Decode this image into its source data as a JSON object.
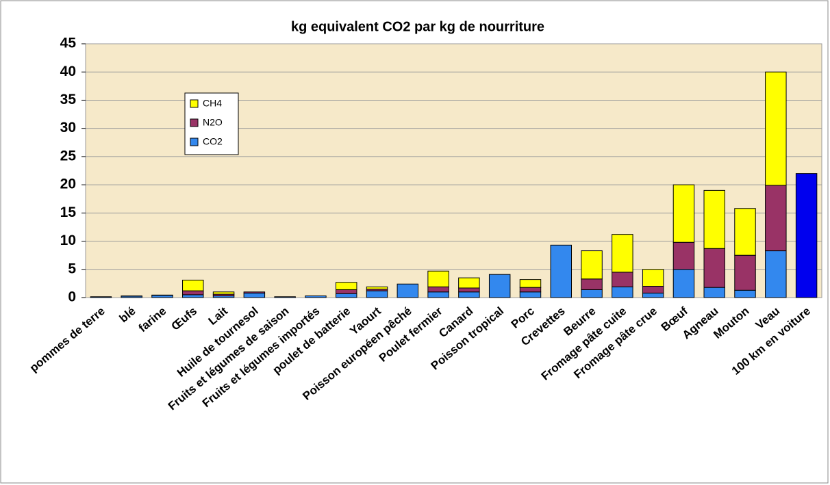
{
  "chart_data": {
    "type": "stacked_bar",
    "title": "kg equivalent CO2 par kg de nourriture",
    "categories": [
      "pommes de terre",
      "blé",
      "farine",
      "Œufs",
      "Lait",
      "Huile de tournesol",
      "Fruits et légumes de saison",
      "Fruits et légumes importés",
      "poulet de batterie",
      "Yaourt",
      "Poisson européen pêché",
      "Poulet fermier",
      "Canard",
      "Poisson tropical",
      "Porc",
      "Crevettes",
      "Beurre",
      "Fromage pâte cuite",
      "Fromage pâte crue",
      "Bœuf",
      "Agneau",
      "Mouton",
      "Veau",
      "100 km en voiture"
    ],
    "series": [
      {
        "name": "CO2",
        "color": "#3388ee",
        "values": [
          0.15,
          0.25,
          0.4,
          0.5,
          0.3,
          0.8,
          0.15,
          0.3,
          0.7,
          1.2,
          2.4,
          1.0,
          1.0,
          4.1,
          1.0,
          9.3,
          1.4,
          1.9,
          0.8,
          5.0,
          1.8,
          1.3,
          8.3,
          22
        ],
        "colors": [
          "#3388ee",
          "#3388ee",
          "#3388ee",
          "#3388ee",
          "#3388ee",
          "#3388ee",
          "#3388ee",
          "#3388ee",
          "#3388ee",
          "#3388ee",
          "#3388ee",
          "#3388ee",
          "#3388ee",
          "#3388ee",
          "#3388ee",
          "#3388ee",
          "#3388ee",
          "#3388ee",
          "#3388ee",
          "#3388ee",
          "#3388ee",
          "#3388ee",
          "#3388ee",
          "#0000ee"
        ]
      },
      {
        "name": "N2O",
        "color": "#993366",
        "values": [
          0,
          0.05,
          0.05,
          0.7,
          0.3,
          0.2,
          0,
          0,
          0.7,
          0.3,
          0,
          0.9,
          0.7,
          0,
          0.8,
          0,
          1.9,
          2.6,
          1.2,
          4.8,
          6.9,
          6.2,
          11.6,
          0
        ]
      },
      {
        "name": "CH4",
        "color": "#ffff00",
        "values": [
          0,
          0,
          0,
          1.9,
          0.4,
          0,
          0,
          0,
          1.3,
          0.4,
          0,
          2.8,
          1.8,
          0,
          1.4,
          0,
          5.0,
          6.7,
          3.0,
          10.2,
          10.3,
          8.3,
          20.1,
          0
        ]
      }
    ],
    "ylim": [
      0,
      45
    ],
    "yticks": [
      0,
      5,
      10,
      15,
      20,
      25,
      30,
      35,
      40,
      45
    ],
    "grid": true
  }
}
